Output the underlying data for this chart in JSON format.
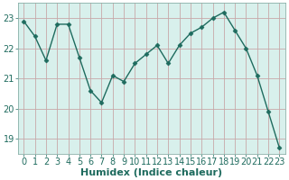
{
  "x": [
    0,
    1,
    2,
    3,
    4,
    5,
    6,
    7,
    8,
    9,
    10,
    11,
    12,
    13,
    14,
    15,
    16,
    17,
    18,
    19,
    20,
    21,
    22,
    23
  ],
  "y": [
    22.9,
    22.4,
    21.6,
    22.8,
    22.8,
    21.7,
    20.6,
    20.2,
    21.1,
    20.9,
    21.5,
    21.8,
    22.1,
    21.5,
    22.1,
    22.5,
    22.7,
    23.0,
    23.2,
    22.6,
    22.0,
    21.1,
    19.9,
    18.7
  ],
  "line_color": "#1e6b5e",
  "marker": "D",
  "marker_size": 2.5,
  "plot_bg_color": "#d8f0ec",
  "fig_bg_color": "#ffffff",
  "grid_color": "#c8a8a8",
  "xlabel": "Humidex (Indice chaleur)",
  "xlim": [
    -0.5,
    23.5
  ],
  "ylim": [
    18.5,
    23.5
  ],
  "yticks": [
    19,
    20,
    21,
    22,
    23
  ],
  "xticks": [
    0,
    1,
    2,
    3,
    4,
    5,
    6,
    7,
    8,
    9,
    10,
    11,
    12,
    13,
    14,
    15,
    16,
    17,
    18,
    19,
    20,
    21,
    22,
    23
  ],
  "tick_color": "#1e6b5e",
  "fontsize_ticks": 7,
  "fontsize_xlabel": 8,
  "spine_color": "#8ab0a8",
  "linewidth": 1.0
}
